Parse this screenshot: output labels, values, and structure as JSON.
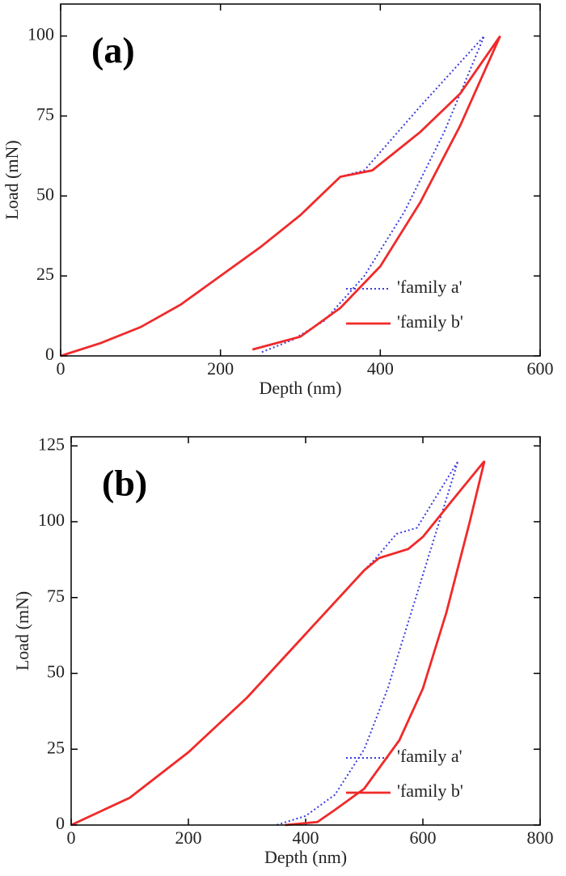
{
  "chart_data": [
    {
      "type": "line",
      "annotation": "(a)",
      "x_label": "Depth (nm)",
      "y_label": "Load (mN)",
      "xlim": [
        0,
        600
      ],
      "ylim": [
        0,
        110
      ],
      "xticks": [
        0,
        200,
        400,
        600
      ],
      "yticks": [
        0,
        25,
        50,
        75,
        100
      ],
      "legend": "lower right",
      "series": [
        {
          "name": "'family a'",
          "color": "#3a3ae0",
          "linestyle": "dotted",
          "x": [
            0,
            50,
            100,
            150,
            200,
            250,
            300,
            350,
            380,
            450,
            530,
            480,
            430,
            380,
            330,
            290,
            250
          ],
          "values": [
            0,
            4,
            9,
            16,
            25,
            34,
            44,
            56,
            58,
            78,
            100,
            70,
            45,
            25,
            11,
            5,
            1
          ]
        },
        {
          "name": "'family b'",
          "color": "#f02a2a",
          "linestyle": "solid",
          "x": [
            0,
            50,
            100,
            150,
            200,
            250,
            300,
            350,
            390,
            450,
            500,
            550,
            500,
            450,
            400,
            350,
            300,
            240
          ],
          "values": [
            0,
            4,
            9,
            16,
            25,
            34,
            44,
            56,
            58,
            70,
            82,
            100,
            72,
            48,
            28,
            15,
            6,
            2
          ]
        }
      ]
    },
    {
      "type": "line",
      "annotation": "(b)",
      "x_label": "Depth (nm)",
      "y_label": "Load (mN)",
      "xlim": [
        0,
        800
      ],
      "ylim": [
        0,
        128
      ],
      "xticks": [
        0,
        200,
        400,
        600,
        800
      ],
      "yticks": [
        0,
        25,
        50,
        75,
        100,
        125
      ],
      "legend": "lower right",
      "series": [
        {
          "name": "'family a'",
          "color": "#3a3ae0",
          "linestyle": "dotted",
          "x": [
            0,
            100,
            200,
            300,
            400,
            500,
            520,
            555,
            590,
            660,
            620,
            580,
            540,
            500,
            450,
            400,
            350
          ],
          "values": [
            0,
            9,
            24,
            42,
            63,
            84,
            88,
            96,
            98,
            120,
            95,
            70,
            45,
            25,
            10,
            3,
            0
          ]
        },
        {
          "name": "'family b'",
          "color": "#f02a2a",
          "linestyle": "solid",
          "x": [
            0,
            100,
            200,
            300,
            400,
            500,
            525,
            575,
            600,
            650,
            705,
            680,
            640,
            600,
            560,
            500,
            450,
            420,
            365
          ],
          "values": [
            0,
            9,
            24,
            42,
            63,
            84,
            88,
            91,
            95,
            107,
            120,
            100,
            70,
            45,
            28,
            12,
            5,
            1,
            0
          ]
        }
      ]
    }
  ]
}
